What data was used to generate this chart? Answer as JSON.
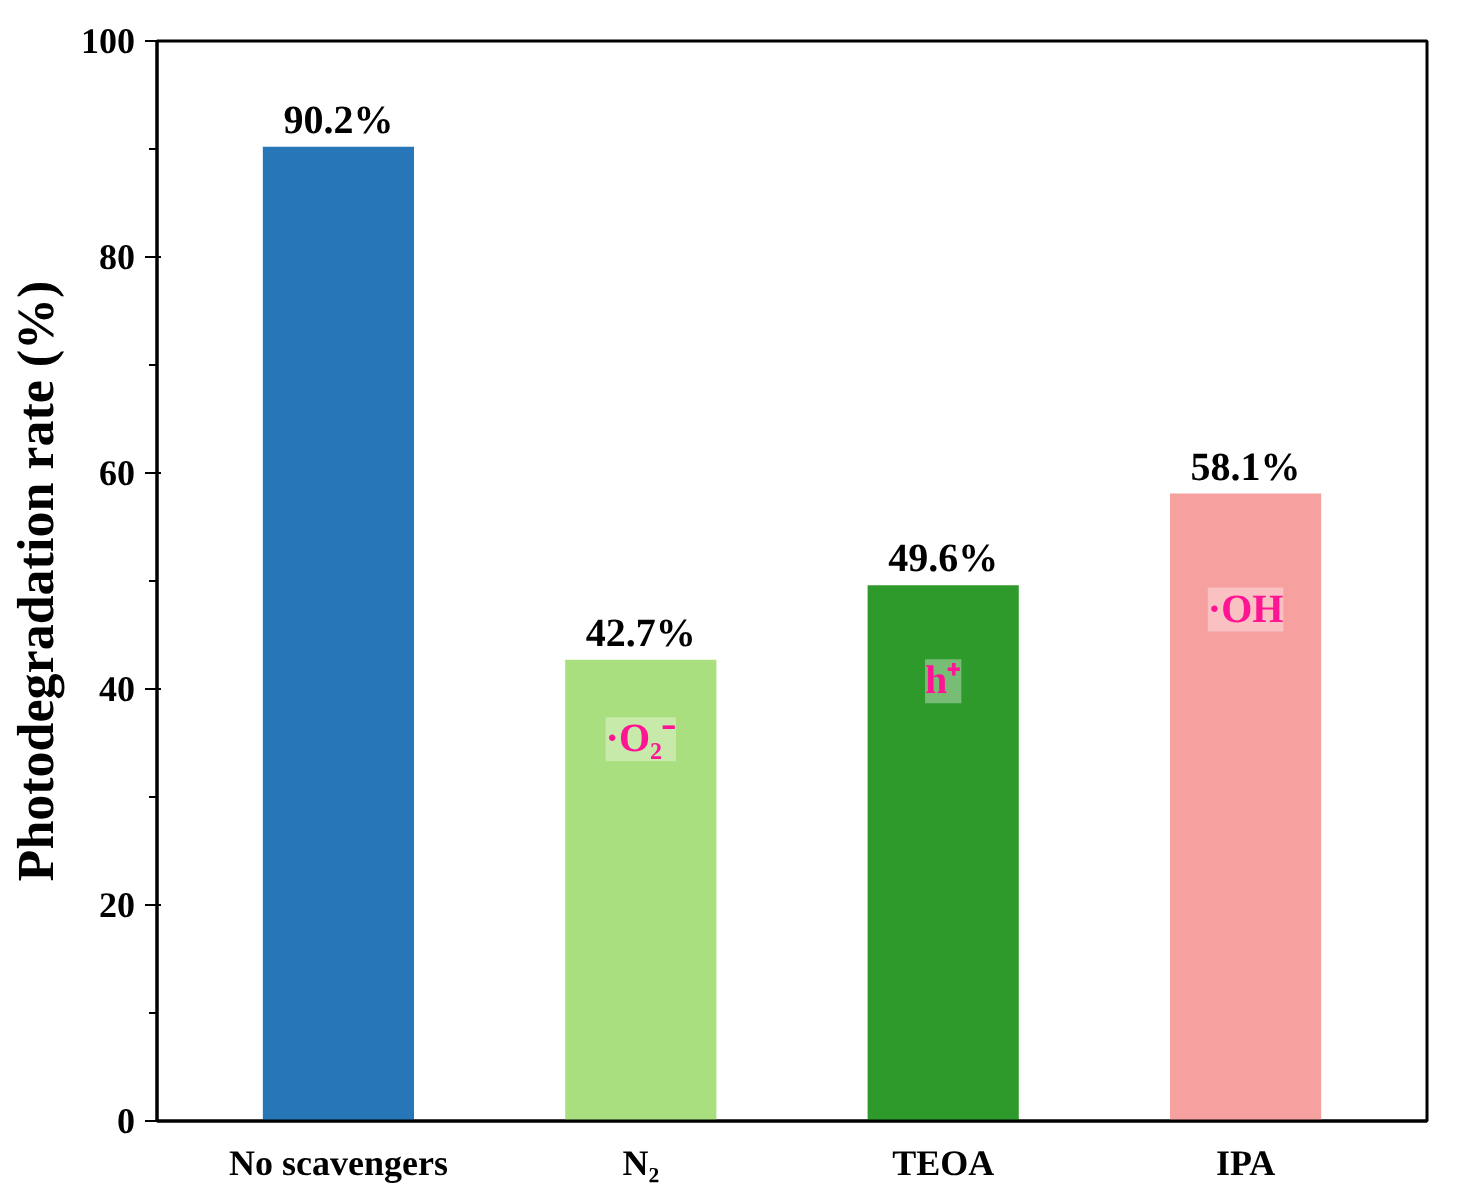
{
  "chart_data": {
    "type": "bar",
    "ylabel": "Photodegradation rate (%)",
    "categories": [
      "No scavengers",
      "N₂",
      "TEOA",
      "IPA"
    ],
    "values": [
      90.2,
      42.7,
      49.6,
      58.1
    ],
    "colors": [
      "#2676b8",
      "#a9df7e",
      "#2f9a2c",
      "#f6a0a0"
    ],
    "value_labels": [
      "90.2%",
      "42.7%",
      "49.6%",
      "58.1%"
    ],
    "ylim": [
      0,
      100
    ],
    "yticks": [
      0,
      20,
      40,
      60,
      80,
      100
    ],
    "grid": false,
    "annotations": [
      "·O₂⁻",
      "h⁺",
      "·OH"
    ]
  }
}
